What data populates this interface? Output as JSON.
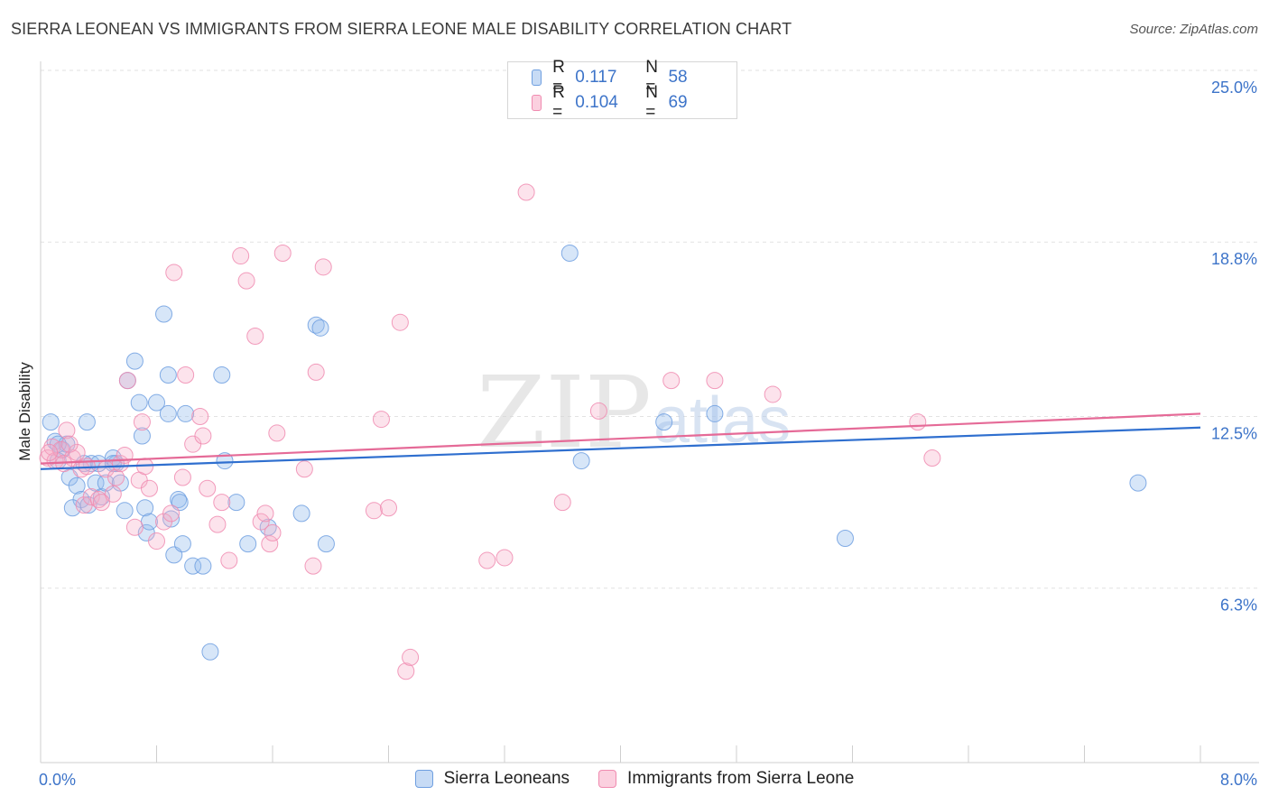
{
  "title": "SIERRA LEONEAN VS IMMIGRANTS FROM SIERRA LEONE MALE DISABILITY CORRELATION CHART",
  "source": "Source: ZipAtlas.com",
  "watermark": {
    "zip": "ZIP",
    "atlas": "atlas"
  },
  "legend": {
    "r_label": "R =",
    "n_label": "N =",
    "rows": [
      {
        "r": "0.117",
        "n": "58",
        "color": "#6f9fe0"
      },
      {
        "r": "0.104",
        "n": "69",
        "color": "#f08bb0"
      }
    ]
  },
  "bottom_legend": [
    "Sierra Leoneans",
    "Immigrants from Sierra Leone"
  ],
  "chart_data": {
    "type": "scatter",
    "title": "SIERRA LEONEAN VS IMMIGRANTS FROM SIERRA LEONE MALE DISABILITY CORRELATION CHART",
    "xlabel": "",
    "ylabel": "Male Disability",
    "xlim": [
      0.0,
      8.0
    ],
    "ylim": [
      0.0,
      25.0
    ],
    "x_tick_labels": [
      "0.0%",
      "8.0%"
    ],
    "y_ticks": [
      {
        "value": 6.3,
        "label": "6.3%"
      },
      {
        "value": 12.5,
        "label": "12.5%"
      },
      {
        "value": 18.8,
        "label": "18.8%"
      },
      {
        "value": 25.0,
        "label": "25.0%"
      }
    ],
    "series": [
      {
        "name": "Sierra Leoneans",
        "color": "#6f9fe0",
        "trend": {
          "x": [
            0.0,
            8.0
          ],
          "y": [
            10.6,
            12.1
          ]
        },
        "points": [
          [
            0.07,
            12.3
          ],
          [
            0.1,
            11.6
          ],
          [
            0.15,
            11.3
          ],
          [
            0.12,
            10.9
          ],
          [
            0.18,
            11.5
          ],
          [
            0.2,
            10.3
          ],
          [
            0.25,
            10.0
          ],
          [
            0.28,
            9.5
          ],
          [
            0.33,
            9.3
          ],
          [
            0.35,
            10.8
          ],
          [
            0.4,
            10.8
          ],
          [
            0.38,
            10.1
          ],
          [
            0.42,
            9.6
          ],
          [
            0.45,
            10.1
          ],
          [
            0.5,
            11.0
          ],
          [
            0.52,
            10.8
          ],
          [
            0.55,
            10.1
          ],
          [
            0.58,
            9.1
          ],
          [
            0.6,
            13.8
          ],
          [
            0.65,
            14.5
          ],
          [
            0.68,
            13.0
          ],
          [
            0.7,
            11.8
          ],
          [
            0.72,
            9.2
          ],
          [
            0.73,
            8.3
          ],
          [
            0.75,
            8.7
          ],
          [
            0.85,
            16.2
          ],
          [
            0.88,
            14.0
          ],
          [
            0.9,
            8.8
          ],
          [
            0.95,
            9.5
          ],
          [
            0.96,
            9.4
          ],
          [
            0.92,
            7.5
          ],
          [
            0.98,
            7.9
          ],
          [
            1.05,
            7.1
          ],
          [
            1.12,
            7.1
          ],
          [
            1.0,
            12.6
          ],
          [
            0.88,
            12.6
          ],
          [
            0.32,
            12.3
          ],
          [
            0.3,
            10.8
          ],
          [
            0.12,
            11.5
          ],
          [
            0.22,
            9.2
          ],
          [
            0.5,
            10.8
          ],
          [
            0.8,
            13.0
          ],
          [
            1.17,
            4.0
          ],
          [
            1.25,
            14.0
          ],
          [
            1.27,
            10.9
          ],
          [
            1.35,
            9.4
          ],
          [
            1.43,
            7.9
          ],
          [
            1.57,
            8.5
          ],
          [
            1.8,
            9.0
          ],
          [
            1.9,
            15.8
          ],
          [
            1.93,
            15.7
          ],
          [
            1.97,
            7.9
          ],
          [
            3.65,
            18.4
          ],
          [
            3.73,
            10.9
          ],
          [
            4.3,
            12.3
          ],
          [
            4.65,
            12.6
          ],
          [
            5.55,
            8.1
          ],
          [
            7.57,
            10.1
          ]
        ]
      },
      {
        "name": "Immigrants from Sierra Leone",
        "color": "#f08bb0",
        "trend": {
          "x": [
            0.0,
            8.0
          ],
          "y": [
            10.8,
            12.6
          ]
        },
        "points": [
          [
            0.05,
            11.0
          ],
          [
            0.08,
            11.4
          ],
          [
            0.1,
            10.9
          ],
          [
            0.14,
            11.3
          ],
          [
            0.18,
            12.0
          ],
          [
            0.22,
            11.0
          ],
          [
            0.25,
            11.2
          ],
          [
            0.28,
            10.6
          ],
          [
            0.3,
            9.3
          ],
          [
            0.32,
            10.7
          ],
          [
            0.35,
            9.6
          ],
          [
            0.4,
            9.5
          ],
          [
            0.45,
            10.6
          ],
          [
            0.5,
            9.7
          ],
          [
            0.52,
            10.3
          ],
          [
            0.55,
            10.8
          ],
          [
            0.58,
            11.1
          ],
          [
            0.6,
            13.8
          ],
          [
            0.65,
            8.5
          ],
          [
            0.68,
            10.2
          ],
          [
            0.7,
            12.3
          ],
          [
            0.72,
            10.7
          ],
          [
            0.75,
            9.9
          ],
          [
            0.8,
            8.0
          ],
          [
            0.85,
            8.7
          ],
          [
            0.9,
            9.0
          ],
          [
            0.92,
            17.7
          ],
          [
            0.98,
            10.3
          ],
          [
            1.0,
            14.0
          ],
          [
            1.05,
            11.5
          ],
          [
            1.1,
            12.5
          ],
          [
            1.12,
            11.8
          ],
          [
            1.15,
            9.9
          ],
          [
            1.22,
            8.6
          ],
          [
            1.25,
            9.4
          ],
          [
            1.3,
            7.3
          ],
          [
            1.38,
            18.3
          ],
          [
            1.42,
            17.4
          ],
          [
            1.48,
            15.4
          ],
          [
            1.52,
            8.7
          ],
          [
            1.55,
            9.0
          ],
          [
            1.58,
            7.9
          ],
          [
            1.6,
            8.3
          ],
          [
            1.63,
            11.9
          ],
          [
            1.67,
            18.4
          ],
          [
            1.82,
            10.6
          ],
          [
            1.88,
            7.1
          ],
          [
            1.9,
            14.1
          ],
          [
            1.95,
            17.9
          ],
          [
            2.3,
            9.1
          ],
          [
            2.35,
            12.4
          ],
          [
            2.4,
            9.2
          ],
          [
            2.48,
            15.9
          ],
          [
            2.52,
            3.3
          ],
          [
            2.55,
            3.8
          ],
          [
            3.08,
            7.3
          ],
          [
            3.2,
            7.4
          ],
          [
            3.35,
            20.6
          ],
          [
            3.6,
            9.4
          ],
          [
            3.85,
            12.7
          ],
          [
            4.35,
            13.8
          ],
          [
            4.65,
            13.8
          ],
          [
            5.05,
            13.3
          ],
          [
            6.05,
            12.3
          ],
          [
            6.15,
            11.0
          ],
          [
            0.06,
            11.2
          ],
          [
            0.2,
            11.5
          ],
          [
            0.16,
            10.8
          ],
          [
            0.42,
            9.4
          ]
        ]
      }
    ]
  }
}
